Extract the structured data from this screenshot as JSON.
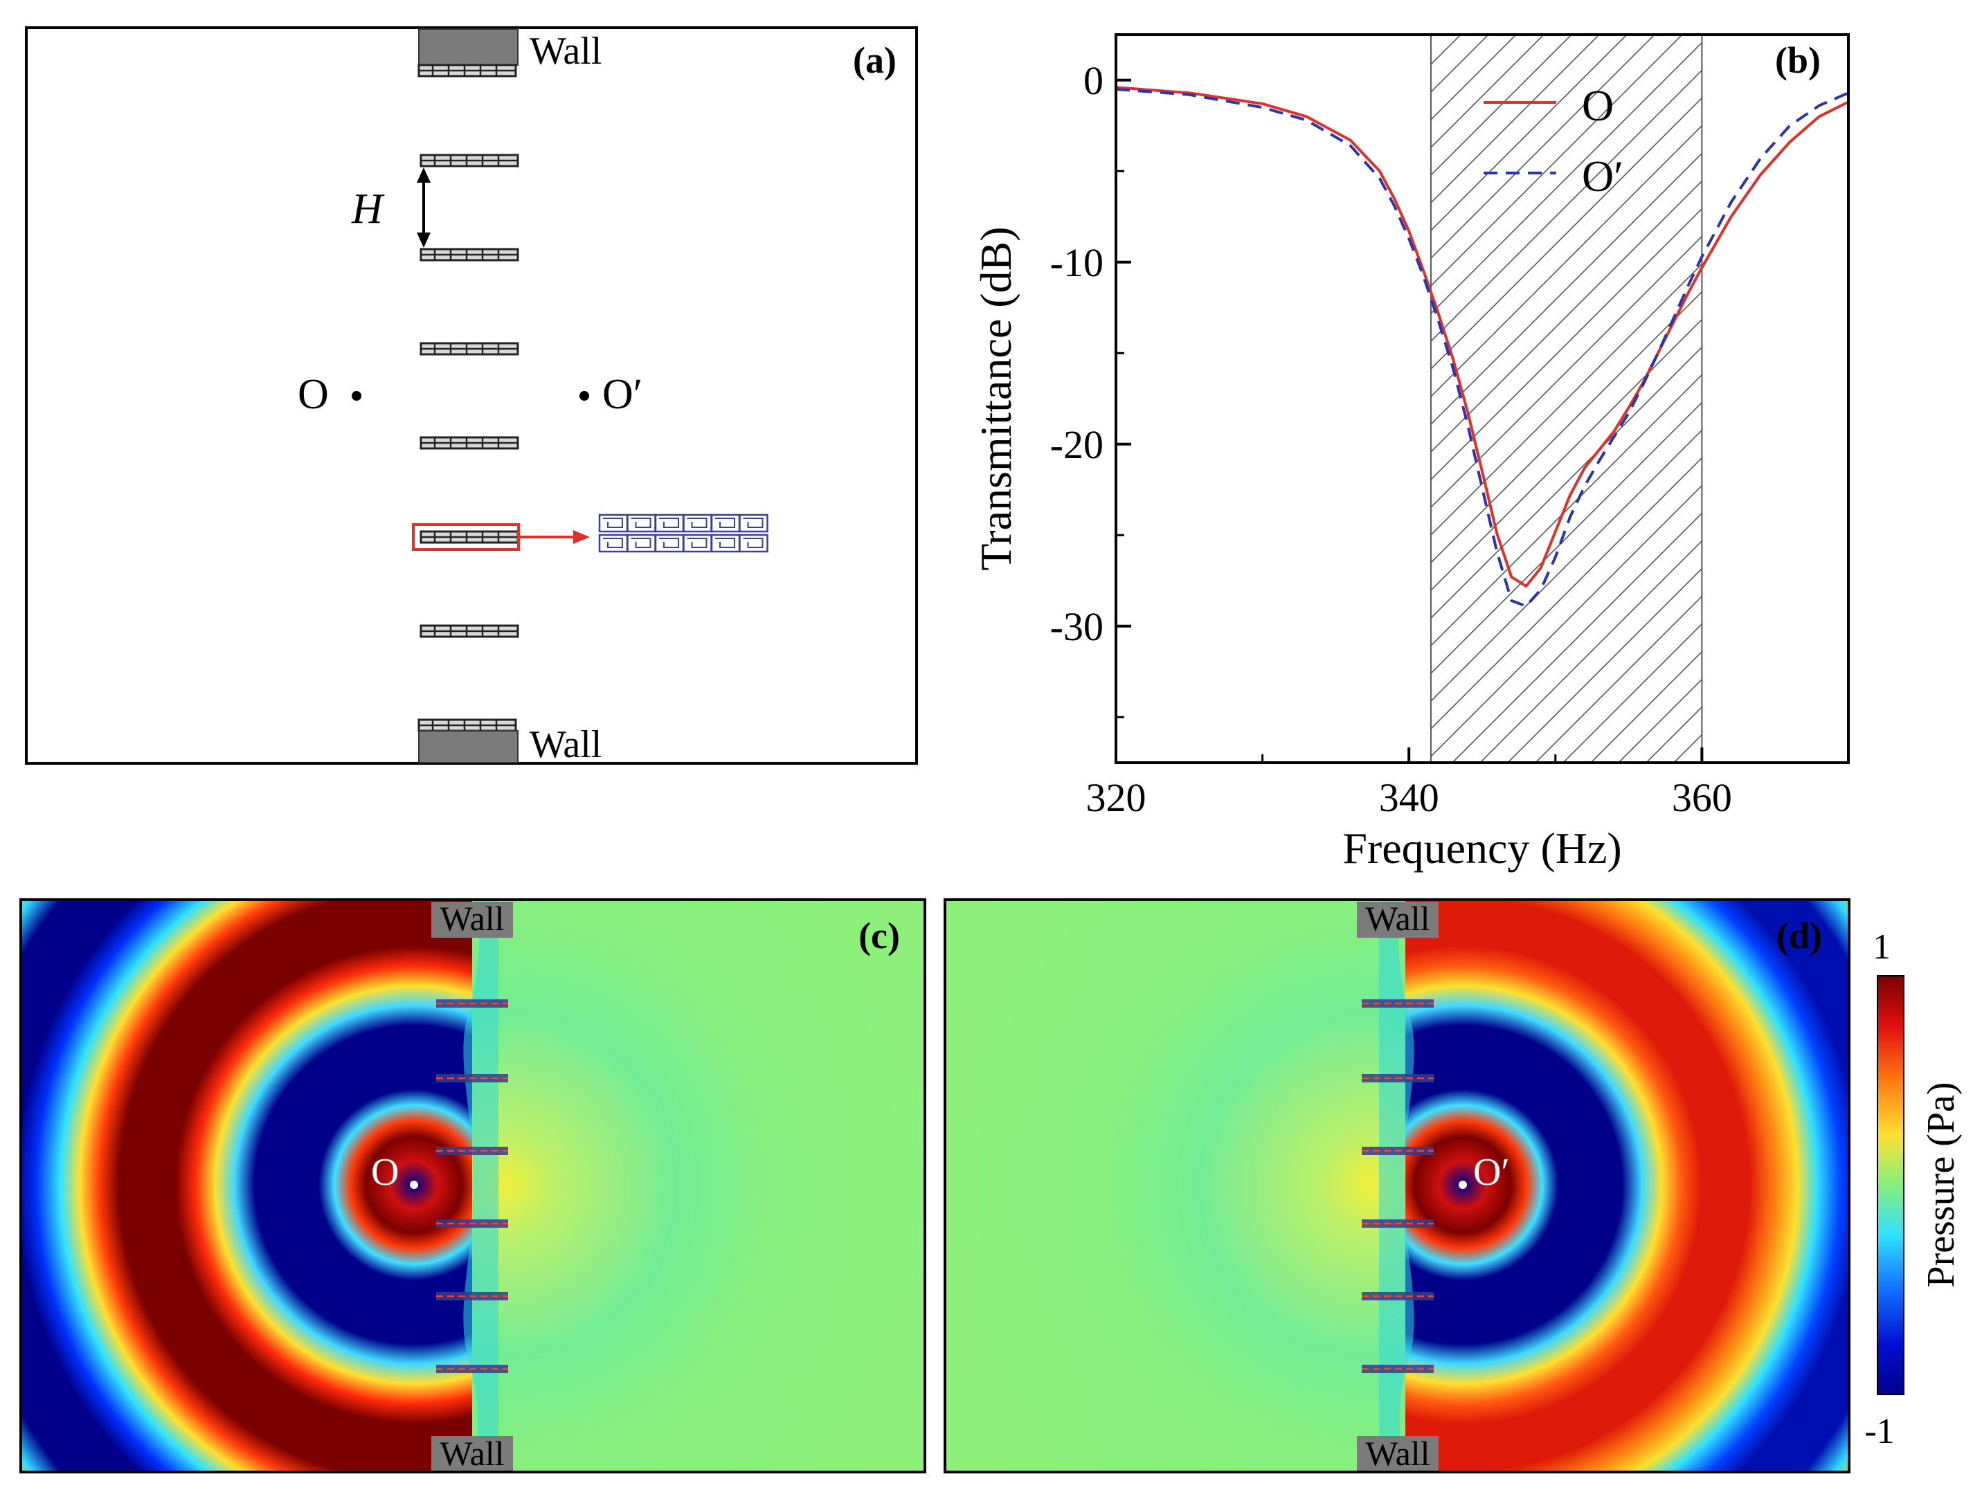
{
  "colors": {
    "red": "#e0302a",
    "blue": "#2a33b0",
    "dark_red": "#7a0000",
    "dark_blue": "#00008a",
    "green": "#86ef7e",
    "wall_gray": "#7b7b7b"
  },
  "panel_a": {
    "label": "(a)",
    "wall_top": "Wall",
    "wall_bottom": "Wall",
    "spacing_label": "H",
    "point_left": "O",
    "point_right": "O′"
  },
  "panel_b": {
    "label": "(b)"
  },
  "panel_c": {
    "label": "(c)",
    "wall_top": "Wall",
    "wall_bottom": "Wall",
    "source_label": "O"
  },
  "panel_d": {
    "label": "(d)",
    "wall_top": "Wall",
    "wall_bottom": "Wall",
    "source_label": "O′"
  },
  "colorbar": {
    "max_label": "1",
    "min_label": "-1",
    "title": "Pressure (Pa)"
  },
  "chart_data": {
    "type": "line",
    "title": "",
    "xlabel": "Frequency (Hz)",
    "ylabel": "Transmittance (dB)",
    "xlim": [
      320,
      370
    ],
    "ylim": [
      -37.5,
      2.5
    ],
    "x_ticks": [
      320,
      340,
      360
    ],
    "y_ticks": [
      0,
      -10,
      -20,
      -30
    ],
    "x_minor_ticks": [
      330,
      350,
      370
    ],
    "y_minor_ticks": [
      -5,
      -15,
      -25,
      -35
    ],
    "shaded_band": {
      "x": [
        341.5,
        360
      ],
      "style": "hatched"
    },
    "legend_position": "top-center",
    "series": [
      {
        "name": "O",
        "style": "solid",
        "x": [
          320,
          325,
          330,
          333,
          336,
          338,
          339,
          340,
          341,
          342,
          343,
          344,
          345,
          346,
          347,
          348,
          349,
          350,
          351,
          352,
          353,
          354,
          355,
          356,
          357,
          358,
          359,
          360,
          362,
          364,
          366,
          368,
          370
        ],
        "y": [
          -0.4,
          -0.7,
          -1.3,
          -2.0,
          -3.3,
          -5.0,
          -6.5,
          -8.3,
          -10.5,
          -12.8,
          -15.3,
          -18.2,
          -21.5,
          -24.9,
          -27.3,
          -27.8,
          -26.8,
          -24.8,
          -22.8,
          -21.3,
          -20.3,
          -19.3,
          -18.0,
          -16.6,
          -15.0,
          -13.4,
          -11.8,
          -10.3,
          -7.5,
          -5.2,
          -3.4,
          -2.0,
          -1.2
        ]
      },
      {
        "name": "O′",
        "style": "dashed",
        "x": [
          320,
          325,
          330,
          333,
          336,
          338,
          339,
          340,
          341,
          342,
          343,
          344,
          345,
          346,
          347,
          348,
          349,
          350,
          351,
          352,
          353,
          354,
          355,
          356,
          357,
          358,
          359,
          360,
          362,
          364,
          366,
          368,
          370
        ],
        "y": [
          -0.5,
          -0.8,
          -1.5,
          -2.2,
          -3.6,
          -5.4,
          -6.9,
          -8.7,
          -10.8,
          -13.2,
          -15.8,
          -18.9,
          -22.4,
          -25.9,
          -28.6,
          -28.9,
          -28.0,
          -26.2,
          -24.0,
          -22.3,
          -20.9,
          -19.6,
          -18.3,
          -16.7,
          -15.0,
          -13.2,
          -11.4,
          -9.7,
          -6.7,
          -4.3,
          -2.5,
          -1.4,
          -0.7
        ]
      }
    ]
  }
}
